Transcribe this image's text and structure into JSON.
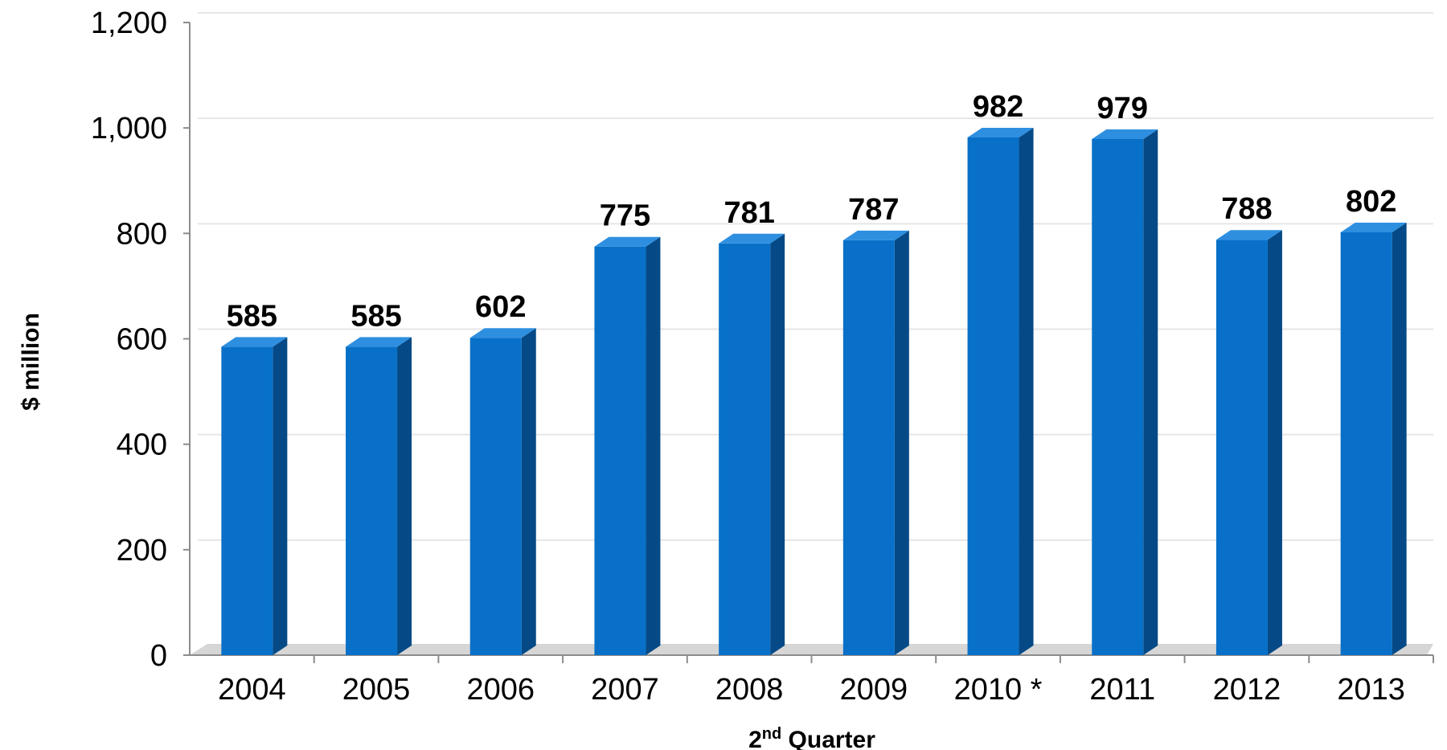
{
  "chart_data": {
    "type": "bar",
    "categories": [
      "2004",
      "2005",
      "2006",
      "2007",
      "2008",
      "2009",
      "2010 *",
      "2011",
      "2012",
      "2013"
    ],
    "values": [
      585,
      585,
      602,
      775,
      781,
      787,
      982,
      979,
      788,
      802
    ],
    "data_labels": [
      "585",
      "585",
      "602",
      "775",
      "781",
      "787",
      "982",
      "979",
      "788",
      "802"
    ],
    "xlabel": "2nd Quarter",
    "ylabel": "$ million",
    "ylim": [
      0,
      1200
    ],
    "yticks": [
      0,
      200,
      400,
      600,
      800,
      1000,
      1200
    ],
    "ytick_labels": [
      "0",
      "200",
      "400",
      "600",
      "800",
      "1,000",
      "1,200"
    ],
    "grid": true,
    "legend": "none",
    "colors": {
      "bar_front": "#0870c8",
      "bar_side": "#054a86",
      "bar_top": "#2e8fe0",
      "grid": "#e6e6e6",
      "axis": "#8c8c8c"
    }
  }
}
